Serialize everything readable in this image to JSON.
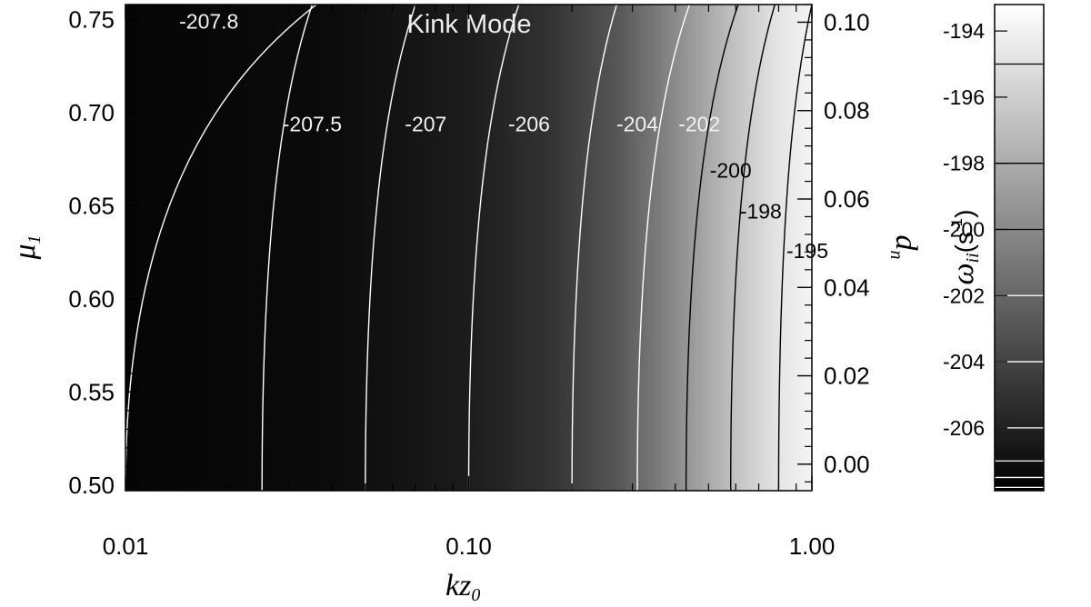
{
  "chart_data": {
    "type": "heatmap",
    "title": "Kink Mode",
    "x_axis": {
      "label": "kz",
      "label_subscript": "0",
      "scale": "log",
      "range": [
        0.01,
        1.0
      ],
      "ticks": [
        0.01,
        0.1,
        1.0
      ],
      "tick_labels": [
        "0.01",
        "0.10",
        "1.00"
      ]
    },
    "y_axis_left": {
      "label": "μ",
      "label_subscript": "1",
      "range": [
        0.497,
        0.758
      ],
      "ticks": [
        0.5,
        0.55,
        0.6,
        0.65,
        0.7,
        0.75
      ],
      "tick_labels": [
        "0.50",
        "0.55",
        "0.60",
        "0.65",
        "0.70",
        "0.75"
      ]
    },
    "y_axis_right": {
      "label": "d",
      "label_subscript": "n",
      "range": [
        -0.006,
        0.104
      ],
      "ticks": [
        0.0,
        0.02,
        0.04,
        0.06,
        0.08,
        0.1
      ],
      "tick_labels": [
        "0.00",
        "0.02",
        "0.04",
        "0.06",
        "0.08",
        "0.10"
      ]
    },
    "colorbar": {
      "label": "ω",
      "label_subscript": "ii",
      "label_unit": "(s",
      "label_unit_sup": "-1",
      "label_unit_close": ")",
      "range": [
        -207.9,
        -193.2
      ],
      "ticks": [
        -206,
        -204,
        -202,
        -200,
        -198,
        -196,
        -194
      ],
      "tick_labels": [
        "-206",
        "-204",
        "-202",
        "-200",
        "-198",
        "-196",
        "-194"
      ],
      "contour_lines": [
        -207.8,
        -207.5,
        -207,
        -206,
        -204,
        -202,
        -200,
        -198,
        -195
      ],
      "colormap": "grayscale (black = low, white = high)"
    },
    "contours": [
      {
        "level": -207.8,
        "label": "-207.8",
        "kz_at_top": 0.036,
        "kz_at_bottom": 0.01,
        "color": "#ffffff"
      },
      {
        "level": -207.5,
        "label": "-207.5",
        "kz_at_top": 0.035,
        "kz_at_bottom": 0.025,
        "color": "#ffffff"
      },
      {
        "level": -207,
        "label": "-207",
        "kz_at_top": 0.07,
        "kz_at_bottom": 0.05,
        "color": "#ffffff"
      },
      {
        "level": -206,
        "label": "-206",
        "kz_at_top": 0.14,
        "kz_at_bottom": 0.1,
        "color": "#ffffff"
      },
      {
        "level": -204,
        "label": "-204",
        "kz_at_top": 0.27,
        "kz_at_bottom": 0.2,
        "color": "#ffffff"
      },
      {
        "level": -202,
        "label": "-202",
        "kz_at_top": 0.44,
        "kz_at_bottom": 0.31,
        "color": "#ffffff"
      },
      {
        "level": -200,
        "label": "-200",
        "kz_at_top": 0.61,
        "kz_at_bottom": 0.43,
        "color": "#000000"
      },
      {
        "level": -198,
        "label": "-198",
        "kz_at_top": 0.78,
        "kz_at_bottom": 0.58,
        "color": "#000000"
      },
      {
        "level": -195,
        "label": "-195",
        "kz_at_top": 1.0,
        "kz_at_bottom": 0.8,
        "color": "#000000"
      }
    ],
    "grid": false,
    "legend": "colorbar at right"
  }
}
